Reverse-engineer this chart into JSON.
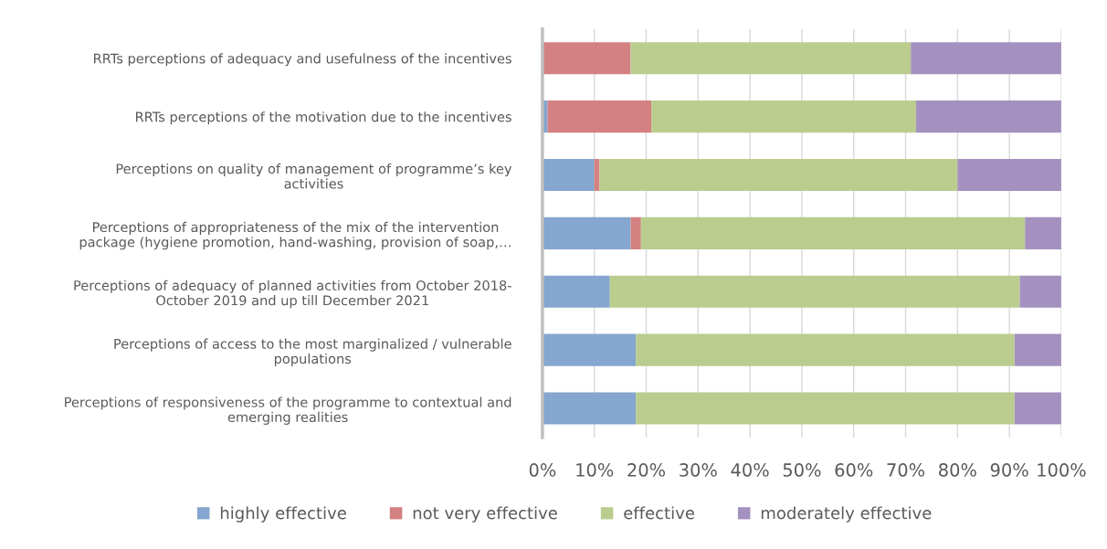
{
  "chart_data": {
    "type": "bar",
    "orientation": "horizontal",
    "stacked": true,
    "categories": [
      "RRTs perceptions of adequacy and usefulness of the incentives",
      "RRTs perceptions of the motivation due to the incentives",
      "Perceptions on quality of management of programme’s key\nactivities",
      "Perceptions of appropriateness of the mix of the intervention\npackage (hygiene promotion, hand-washing, provision of soap,…",
      "Perceptions of adequacy of planned activities from October 2018-\nOctober 2019 and up till December 2021",
      "Perceptions of access to the most marginalized / vulnerable\npopulations",
      "Perceptions of responsiveness of the programme to contextual and\nemerging realities"
    ],
    "series": [
      {
        "name": "highly effective",
        "color": "#84a6cf",
        "values": [
          0,
          1,
          10,
          17,
          13,
          18,
          18
        ]
      },
      {
        "name": "not very effective",
        "color": "#d48181",
        "values": [
          17,
          20,
          1,
          2,
          0,
          0,
          0
        ]
      },
      {
        "name": "effective",
        "color": "#bacd8f",
        "values": [
          54,
          51,
          69,
          74,
          79,
          73,
          73
        ]
      },
      {
        "name": "moderately effective",
        "color": "#a491bf",
        "values": [
          29,
          28,
          20,
          7,
          8,
          9,
          9
        ]
      }
    ],
    "xlim": [
      0,
      100
    ],
    "xticks": [
      {
        "value": 0,
        "label": "0%"
      },
      {
        "value": 10,
        "label": "10%"
      },
      {
        "value": 20,
        "label": "20%"
      },
      {
        "value": 30,
        "label": "30%"
      },
      {
        "value": 40,
        "label": "40%"
      },
      {
        "value": 50,
        "label": "50%"
      },
      {
        "value": 60,
        "label": "60%"
      },
      {
        "value": 70,
        "label": "70%"
      },
      {
        "value": 80,
        "label": "80%"
      },
      {
        "value": 90,
        "label": "90%"
      },
      {
        "value": 100,
        "label": "100%"
      }
    ],
    "grid": "x",
    "legend": "bottom"
  }
}
